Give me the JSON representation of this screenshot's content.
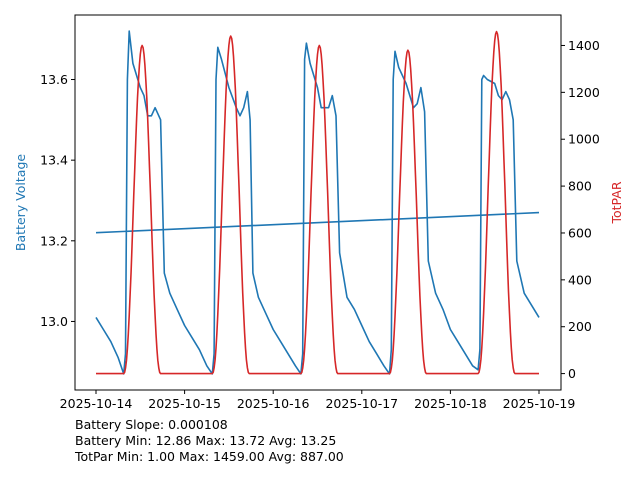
{
  "chart_data": {
    "type": "line",
    "title": "",
    "xlabel": "",
    "ylabel_left": "Battery Voltage",
    "ylabel_right": "TotPAR",
    "x_range": [
      "2025-10-14",
      "2025-10-19"
    ],
    "x_ticks": [
      "2025-10-14",
      "2025-10-15",
      "2025-10-16",
      "2025-10-17",
      "2025-10-18",
      "2025-10-19"
    ],
    "ylim_left": [
      12.83,
      13.76
    ],
    "y_ticks_left": [
      "13.0",
      "13.2",
      "13.4",
      "13.6"
    ],
    "ylim_right": [
      -70,
      1530
    ],
    "y_ticks_right": [
      "0",
      "200",
      "400",
      "600",
      "800",
      "1000",
      "1200",
      "1400"
    ],
    "grid": false,
    "legend": "none",
    "colors": {
      "battery": "#1f77b4",
      "par": "#d62728"
    },
    "series": [
      {
        "name": "Battery Voltage",
        "axis": "left",
        "points": [
          [
            "2025-10-14 00:00",
            13.01
          ],
          [
            "2025-10-14 02:00",
            12.98
          ],
          [
            "2025-10-14 04:00",
            12.95
          ],
          [
            "2025-10-14 06:00",
            12.91
          ],
          [
            "2025-10-14 07:30",
            12.87
          ],
          [
            "2025-10-14 08:00",
            12.92
          ],
          [
            "2025-10-14 08:30",
            13.6
          ],
          [
            "2025-10-14 09:00",
            13.72
          ],
          [
            "2025-10-14 10:00",
            13.64
          ],
          [
            "2025-10-14 12:00",
            13.58
          ],
          [
            "2025-10-14 13:00",
            13.56
          ],
          [
            "2025-10-14 14:00",
            13.51
          ],
          [
            "2025-10-14 15:00",
            13.51
          ],
          [
            "2025-10-14 16:00",
            13.53
          ],
          [
            "2025-10-14 17:30",
            13.5
          ],
          [
            "2025-10-14 18:30",
            13.12
          ],
          [
            "2025-10-14 20:00",
            13.07
          ],
          [
            "2025-10-14 22:00",
            13.03
          ],
          [
            "2025-10-15 00:00",
            12.99
          ],
          [
            "2025-10-15 02:00",
            12.96
          ],
          [
            "2025-10-15 04:00",
            12.93
          ],
          [
            "2025-10-15 06:00",
            12.89
          ],
          [
            "2025-10-15 07:30",
            12.87
          ],
          [
            "2025-10-15 08:00",
            12.92
          ],
          [
            "2025-10-15 08:30",
            13.6
          ],
          [
            "2025-10-15 09:00",
            13.68
          ],
          [
            "2025-10-15 10:00",
            13.65
          ],
          [
            "2025-10-15 12:00",
            13.58
          ],
          [
            "2025-10-15 14:00",
            13.53
          ],
          [
            "2025-10-15 15:00",
            13.51
          ],
          [
            "2025-10-15 16:00",
            13.53
          ],
          [
            "2025-10-15 17:00",
            13.57
          ],
          [
            "2025-10-15 17:45",
            13.5
          ],
          [
            "2025-10-15 18:30",
            13.12
          ],
          [
            "2025-10-15 20:00",
            13.06
          ],
          [
            "2025-10-15 22:00",
            13.02
          ],
          [
            "2025-10-16 00:00",
            12.98
          ],
          [
            "2025-10-16 02:00",
            12.95
          ],
          [
            "2025-10-16 04:00",
            12.92
          ],
          [
            "2025-10-16 06:00",
            12.89
          ],
          [
            "2025-10-16 07:30",
            12.87
          ],
          [
            "2025-10-16 08:00",
            12.92
          ],
          [
            "2025-10-16 08:30",
            13.65
          ],
          [
            "2025-10-16 09:00",
            13.69
          ],
          [
            "2025-10-16 10:00",
            13.64
          ],
          [
            "2025-10-16 12:00",
            13.58
          ],
          [
            "2025-10-16 13:00",
            13.53
          ],
          [
            "2025-10-16 15:00",
            13.53
          ],
          [
            "2025-10-16 16:00",
            13.56
          ],
          [
            "2025-10-16 17:00",
            13.51
          ],
          [
            "2025-10-16 18:00",
            13.17
          ],
          [
            "2025-10-16 20:00",
            13.06
          ],
          [
            "2025-10-16 22:00",
            13.03
          ],
          [
            "2025-10-17 00:00",
            12.99
          ],
          [
            "2025-10-17 02:00",
            12.95
          ],
          [
            "2025-10-17 04:00",
            12.92
          ],
          [
            "2025-10-17 06:00",
            12.89
          ],
          [
            "2025-10-17 07:30",
            12.87
          ],
          [
            "2025-10-17 08:00",
            12.93
          ],
          [
            "2025-10-17 08:30",
            13.6
          ],
          [
            "2025-10-17 09:00",
            13.67
          ],
          [
            "2025-10-17 10:00",
            13.63
          ],
          [
            "2025-10-17 12:00",
            13.59
          ],
          [
            "2025-10-17 13:00",
            13.56
          ],
          [
            "2025-10-17 14:00",
            13.53
          ],
          [
            "2025-10-17 15:00",
            13.54
          ],
          [
            "2025-10-17 16:00",
            13.58
          ],
          [
            "2025-10-17 17:00",
            13.52
          ],
          [
            "2025-10-17 18:00",
            13.15
          ],
          [
            "2025-10-17 20:00",
            13.07
          ],
          [
            "2025-10-17 22:00",
            13.03
          ],
          [
            "2025-10-18 00:00",
            12.98
          ],
          [
            "2025-10-18 02:00",
            12.95
          ],
          [
            "2025-10-18 04:00",
            12.92
          ],
          [
            "2025-10-18 06:00",
            12.89
          ],
          [
            "2025-10-18 07:30",
            12.88
          ],
          [
            "2025-10-18 08:00",
            12.93
          ],
          [
            "2025-10-18 08:30",
            13.6
          ],
          [
            "2025-10-18 09:00",
            13.61
          ],
          [
            "2025-10-18 10:00",
            13.6
          ],
          [
            "2025-10-18 12:00",
            13.59
          ],
          [
            "2025-10-18 13:00",
            13.56
          ],
          [
            "2025-10-18 14:00",
            13.55
          ],
          [
            "2025-10-18 15:00",
            13.57
          ],
          [
            "2025-10-18 16:00",
            13.55
          ],
          [
            "2025-10-18 17:00",
            13.5
          ],
          [
            "2025-10-18 18:00",
            13.15
          ],
          [
            "2025-10-18 20:00",
            13.07
          ],
          [
            "2025-10-18 22:00",
            13.04
          ],
          [
            "2025-10-19 00:00",
            13.01
          ]
        ]
      },
      {
        "name": "Battery Voltage trend",
        "axis": "left",
        "points": [
          [
            "2025-10-14 00:00",
            13.22
          ],
          [
            "2025-10-19 00:00",
            13.27
          ]
        ]
      },
      {
        "name": "TotPAR",
        "axis": "right",
        "peaks": [
          {
            "date": "2025-10-14",
            "start_hour": 7.5,
            "peak_hour": 12.5,
            "end_hour": 17.5,
            "peak": 1400
          },
          {
            "date": "2025-10-15",
            "start_hour": 7.5,
            "peak_hour": 12.5,
            "end_hour": 17.5,
            "peak": 1440
          },
          {
            "date": "2025-10-16",
            "start_hour": 7.5,
            "peak_hour": 12.5,
            "end_hour": 17.5,
            "peak": 1400
          },
          {
            "date": "2025-10-17",
            "start_hour": 7.5,
            "peak_hour": 12.5,
            "end_hour": 17.5,
            "peak": 1380
          },
          {
            "date": "2025-10-18",
            "start_hour": 7.5,
            "peak_hour": 12.5,
            "end_hour": 17.5,
            "peak": 1459
          }
        ]
      }
    ]
  },
  "stats": {
    "line1": "Battery Slope: 0.000108",
    "line2": "Battery Min: 12.86 Max: 13.72 Avg: 13.25",
    "line3": "TotPar Min: 1.00 Max: 1459.00 Avg: 887.00"
  }
}
